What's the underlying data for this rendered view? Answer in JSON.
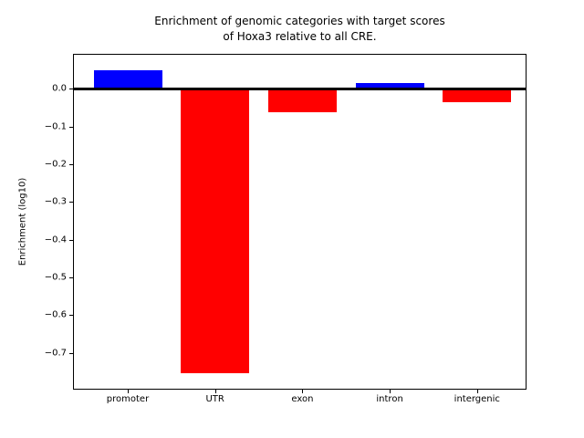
{
  "chart_data": {
    "type": "bar",
    "title": "Enrichment of genomic categories with target scores\nof Hoxa3 relative to all CRE.",
    "xlabel": "",
    "ylabel": "Enrichment (log10)",
    "categories": [
      "promoter",
      "UTR",
      "exon",
      "intron",
      "intergenic"
    ],
    "values": [
      0.05,
      -0.755,
      -0.062,
      0.014,
      -0.036
    ],
    "bar_colors": [
      "#0000ff",
      "#ff0000",
      "#ff0000",
      "#0000ff",
      "#ff0000"
    ],
    "positive_color": "#0000ff",
    "negative_color": "#ff0000",
    "yticks": [
      0.0,
      -0.1,
      -0.2,
      -0.3,
      -0.4,
      -0.5,
      -0.6,
      -0.7
    ],
    "ytick_labels": [
      "0.0",
      "−0.1",
      "−0.2",
      "−0.3",
      "−0.4",
      "−0.5",
      "−0.6",
      "−0.7"
    ],
    "ylim": [
      -0.795,
      0.09
    ],
    "grid": false,
    "legend": "none",
    "zero_line": true,
    "zero_line_color": "#000000"
  }
}
